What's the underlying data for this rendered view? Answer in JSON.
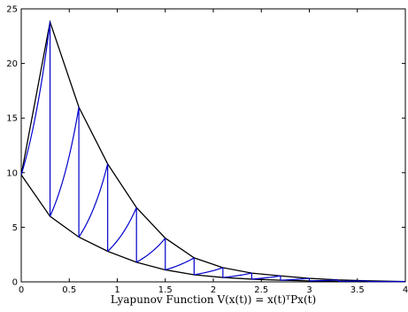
{
  "chart_data": {
    "type": "line",
    "title": "",
    "xlabel": "Lyapunov Function V(x(t)) = x(t)ᵀPx(t)",
    "ylabel": "",
    "xlim": [
      0,
      4
    ],
    "ylim": [
      0,
      25
    ],
    "xticks": [
      0,
      0.5,
      1,
      1.5,
      2,
      2.5,
      3,
      3.5,
      4
    ],
    "xtick_labels": [
      "0",
      "0.5",
      "1",
      "1.5",
      "2",
      "2.5",
      "3",
      "3.5",
      "4"
    ],
    "yticks": [
      0,
      5,
      10,
      15,
      20,
      25
    ],
    "ytick_labels": [
      "0",
      "5",
      "10",
      "15",
      "20",
      "25"
    ],
    "grid": false,
    "legend": "none",
    "series": [
      {
        "color": "#000000",
        "x": [
          0,
          0.3,
          0.6,
          0.9,
          1.2,
          1.5,
          1.8,
          2.1,
          2.4,
          2.7,
          3.0,
          3.3,
          3.6,
          4.0
        ],
        "y": [
          9.8,
          23.8,
          16.0,
          10.8,
          6.8,
          4.0,
          2.2,
          1.3,
          0.8,
          0.55,
          0.32,
          0.18,
          0.1,
          0.03
        ]
      },
      {
        "color": "#000000",
        "x": [
          0,
          0.3,
          0.6,
          0.9,
          1.2,
          1.5,
          1.8,
          2.1,
          2.4,
          2.7,
          3.0,
          3.3,
          3.6,
          4.0
        ],
        "y": [
          9.8,
          6.0,
          4.1,
          2.8,
          1.8,
          1.1,
          0.65,
          0.4,
          0.25,
          0.15,
          0.09,
          0.05,
          0.03,
          0.01
        ]
      }
    ],
    "switching_trajectory": {
      "color": "#0000cc",
      "start": 9.8,
      "switch_times": [
        0.3,
        0.6,
        0.9,
        1.2,
        1.5,
        1.8,
        2.1,
        2.4,
        2.7,
        3.0,
        3.3,
        3.6
      ],
      "pre_jump": [
        23.8,
        16.0,
        10.8,
        6.8,
        4.0,
        2.2,
        1.3,
        0.8,
        0.55,
        0.32,
        0.18,
        0.1
      ],
      "post_jump": [
        6.0,
        4.1,
        2.8,
        1.8,
        1.1,
        0.65,
        0.4,
        0.25,
        0.15,
        0.09,
        0.05,
        0.03
      ],
      "end": [
        4.0,
        0.03
      ]
    }
  }
}
